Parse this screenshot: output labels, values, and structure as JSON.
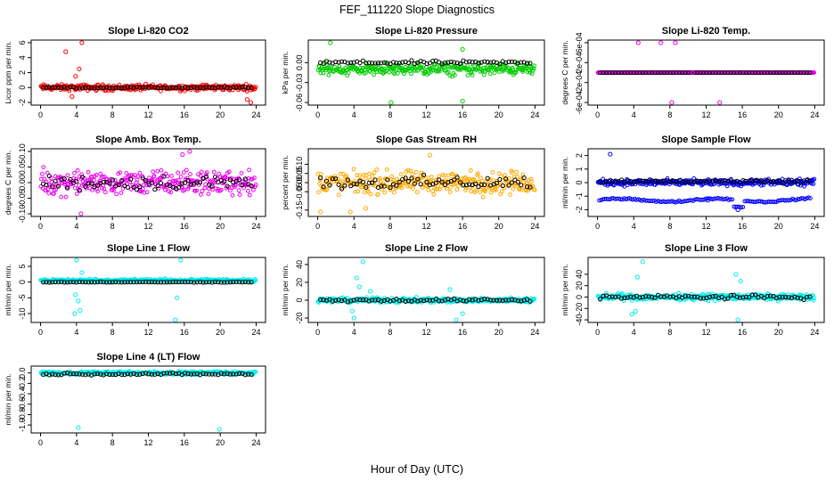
{
  "figure": {
    "title": "FEF_111220  Slope Diagnostics",
    "xlabel": "Hour of Day (UTC)"
  },
  "chart_data": [
    {
      "type": "scatter",
      "title": "Slope Li-820 CO2",
      "ylabel": "Licor ppm per min.",
      "xlim": [
        0,
        24
      ],
      "xticks": [
        "0",
        "4",
        "8",
        "12",
        "16",
        "20",
        "24"
      ],
      "ylim": [
        -2,
        6
      ],
      "yticks": [
        "-2",
        "0",
        "2",
        "4",
        "6"
      ],
      "color": "#ff0000",
      "band": {
        "center": 0,
        "spread": 0.6
      },
      "black_band": {
        "center": 0,
        "spread": 0.15
      },
      "outliers": [
        {
          "x": 2.8,
          "y": 4.8
        },
        {
          "x": 4.6,
          "y": 6.0
        },
        {
          "x": 4.3,
          "y": 2.5
        },
        {
          "x": 3.5,
          "y": -1.2
        },
        {
          "x": 23.4,
          "y": -2.0
        },
        {
          "x": 23.0,
          "y": -1.6
        },
        {
          "x": 3.9,
          "y": 1.5
        }
      ]
    },
    {
      "type": "scatter",
      "title": "Slope Li-820 Pressure",
      "ylabel": "kPa per min.",
      "xlim": [
        0,
        24
      ],
      "xticks": [
        "0",
        "4",
        "8",
        "12",
        "16",
        "20",
        "24"
      ],
      "ylim": [
        -0.06,
        0.03
      ],
      "yticks": [
        "-0.06",
        "-0.03",
        "0.00"
      ],
      "color": "#00cc00",
      "band": {
        "center": -0.01,
        "spread": 0.013
      },
      "black_band": {
        "center": 0.0,
        "spread": 0.004
      },
      "outliers": [
        {
          "x": 1.4,
          "y": 0.03
        },
        {
          "x": 8.1,
          "y": -0.06
        },
        {
          "x": 16.0,
          "y": -0.058
        },
        {
          "x": 16.0,
          "y": 0.02
        }
      ]
    },
    {
      "type": "scatter",
      "title": "Slope Li-820 Temp.",
      "ylabel": "degrees C per min.",
      "xlim": [
        0,
        24
      ],
      "xticks": [
        "0",
        "4",
        "8",
        "12",
        "16",
        "20",
        "24"
      ],
      "ylim": [
        -0.0006,
        0.0006
      ],
      "yticks": [
        "-6e-04",
        "-2e-04",
        "2e-04",
        "6e-04"
      ],
      "color": "#ee00ee",
      "band": {
        "center": 0,
        "spread": 0
      },
      "black_band": {
        "center": 0,
        "spread": 0
      },
      "outliers": [
        {
          "x": 4.5,
          "y": 0.0006
        },
        {
          "x": 7.0,
          "y": 0.0006
        },
        {
          "x": 8.6,
          "y": 0.0006
        },
        {
          "x": 8.2,
          "y": -0.0006
        },
        {
          "x": 13.5,
          "y": -0.0006
        },
        {
          "x": 10.5,
          "y": 0.0
        }
      ]
    },
    {
      "type": "scatter",
      "title": "Slope Amb. Box Temp.",
      "ylabel": "degrees C per min.",
      "xlim": [
        0,
        24
      ],
      "xticks": [
        "0",
        "4",
        "8",
        "12",
        "16",
        "20",
        "24"
      ],
      "ylim": [
        -0.1,
        0.1
      ],
      "yticks": [
        "-0.10",
        "-0.05",
        "0.00",
        "0.05",
        "0.10"
      ],
      "color": "#ee00ee",
      "band": {
        "center": 0,
        "spread": 0.055
      },
      "black_band": {
        "center": 0,
        "spread": 0.035
      },
      "outliers": [
        {
          "x": 4.5,
          "y": -0.1
        },
        {
          "x": 16.6,
          "y": 0.1
        },
        {
          "x": 15.8,
          "y": 0.09
        }
      ]
    },
    {
      "type": "scatter",
      "title": "Slope Gas Stream RH",
      "ylabel": "percent per min.",
      "xlim": [
        0,
        24
      ],
      "xticks": [
        "0",
        "4",
        "8",
        "12",
        "16",
        "20",
        "24"
      ],
      "ylim": [
        -0.17,
        0.17
      ],
      "yticks": [
        "-0.15",
        "-0.05",
        "0.00",
        "0.05",
        "0.10"
      ],
      "color": "#ffaa00",
      "band": {
        "center": 0,
        "spread": 0.09
      },
      "black_band": {
        "center": 0,
        "spread": 0.05
      },
      "outliers": [
        {
          "x": 0.3,
          "y": -0.16
        },
        {
          "x": 3.6,
          "y": -0.16
        },
        {
          "x": 12.4,
          "y": 0.15
        },
        {
          "x": 5.3,
          "y": -0.14
        }
      ]
    },
    {
      "type": "scatter",
      "title": "Slope Sample Flow",
      "ylabel": "ml/min per min.",
      "xlim": [
        0,
        24
      ],
      "xticks": [
        "0",
        "4",
        "8",
        "12",
        "16",
        "20",
        "24"
      ],
      "ylim": [
        -2.3,
        2.3
      ],
      "yticks": [
        "-2",
        "-1",
        "0",
        "1",
        "2"
      ],
      "color": "#0000ff",
      "band": {
        "center": 0,
        "spread": 0.35
      },
      "black_band": {
        "center": 0.1,
        "spread": 0.15
      },
      "outliers": [
        {
          "x": 1.4,
          "y": 2.1
        },
        {
          "x": 12.2,
          "y": -1.3
        },
        {
          "x": 15.5,
          "y": -2.0
        },
        {
          "x": 15.3,
          "y": -1.8
        }
      ],
      "lower_band": {
        "center": -1.3,
        "spread": 0.18,
        "dip_x": 15.5,
        "dip_y": -1.8
      }
    },
    {
      "type": "scatter",
      "title": "Slope Line 1 Flow",
      "ylabel": "ml/min per min.",
      "xlim": [
        0,
        24
      ],
      "xticks": [
        "0",
        "4",
        "8",
        "12",
        "16",
        "20",
        "24"
      ],
      "ylim": [
        -12,
        7
      ],
      "yticks": [
        "-10",
        "-5",
        "0",
        "5"
      ],
      "color": "#00eeee",
      "band": {
        "center": 0.5,
        "spread": 0.8
      },
      "black_band": {
        "center": 0,
        "spread": 0.15
      },
      "outliers": [
        {
          "x": 4.0,
          "y": 7
        },
        {
          "x": 4.2,
          "y": -6
        },
        {
          "x": 4.4,
          "y": -9
        },
        {
          "x": 3.8,
          "y": -10
        },
        {
          "x": 15.6,
          "y": 7
        },
        {
          "x": 15.2,
          "y": -5
        },
        {
          "x": 15.0,
          "y": -12
        },
        {
          "x": 4.6,
          "y": 3
        },
        {
          "x": 3.9,
          "y": -4
        }
      ]
    },
    {
      "type": "scatter",
      "title": "Slope Line 2 Flow",
      "ylabel": "ml/min per min.",
      "xlim": [
        0,
        24
      ],
      "xticks": [
        "0",
        "4",
        "8",
        "12",
        "16",
        "20",
        "24"
      ],
      "ylim": [
        -22,
        45
      ],
      "yticks": [
        "-20",
        "0",
        "20",
        "40"
      ],
      "color": "#00eeee",
      "band": {
        "center": 0,
        "spread": 4
      },
      "black_band": {
        "center": 0,
        "spread": 2.5
      },
      "outliers": [
        {
          "x": 5.0,
          "y": 43
        },
        {
          "x": 4.3,
          "y": 25
        },
        {
          "x": 4.6,
          "y": 15
        },
        {
          "x": 3.8,
          "y": -12
        },
        {
          "x": 4.0,
          "y": -20
        },
        {
          "x": 14.6,
          "y": 12
        },
        {
          "x": 15.3,
          "y": -22
        },
        {
          "x": 16.0,
          "y": -15
        },
        {
          "x": 5.8,
          "y": 10
        }
      ]
    },
    {
      "type": "scatter",
      "title": "Slope Line 3 Flow",
      "ylabel": "ml/min per min.",
      "xlim": [
        0,
        24
      ],
      "xticks": [
        "0",
        "4",
        "8",
        "12",
        "16",
        "20",
        "24"
      ],
      "ylim": [
        -40,
        65
      ],
      "yticks": [
        "-40",
        "-20",
        "0",
        "20",
        "40"
      ],
      "color": "#00eeee",
      "band": {
        "center": 0,
        "spread": 8
      },
      "black_band": {
        "center": 0,
        "spread": 5
      },
      "outliers": [
        {
          "x": 5.0,
          "y": 62
        },
        {
          "x": 4.4,
          "y": 35
        },
        {
          "x": 3.8,
          "y": -30
        },
        {
          "x": 4.2,
          "y": -25
        },
        {
          "x": 15.3,
          "y": 40
        },
        {
          "x": 15.8,
          "y": 28
        },
        {
          "x": 15.5,
          "y": -40
        }
      ]
    },
    {
      "type": "scatter",
      "title": "Slope Line 4 (LT) Flow",
      "ylabel": "ml/min per min.",
      "xlim": [
        0,
        24
      ],
      "xticks": [
        "0",
        "4",
        "8",
        "12",
        "16",
        "20",
        "24"
      ],
      "ylim": [
        -1.1,
        0.08
      ],
      "yticks": [
        "-1.0",
        "-0.8",
        "-0.6",
        "-0.4",
        "-0.2",
        "0.0"
      ],
      "color": "#00eeee",
      "band": {
        "center": 0,
        "spread": 0.05
      },
      "black_band": {
        "center": -0.02,
        "spread": 0.03
      },
      "outliers": [
        {
          "x": 4.2,
          "y": -1.05
        },
        {
          "x": 19.9,
          "y": -1.08
        }
      ]
    }
  ]
}
